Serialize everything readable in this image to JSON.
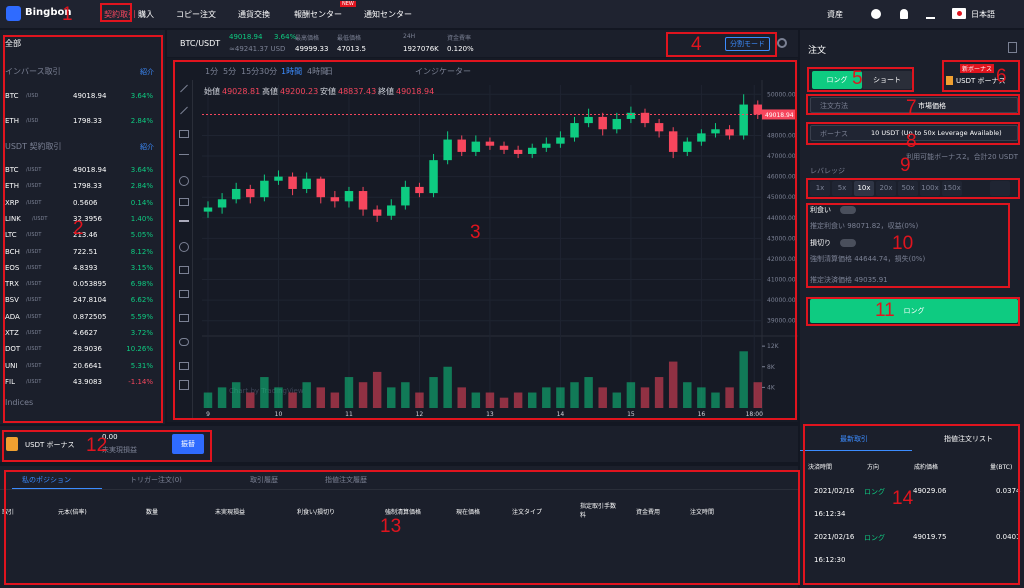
{
  "nav": {
    "logo": "Bingbon",
    "items": [
      "契約取引",
      "購入",
      "コピー注文",
      "通貨交換",
      "報酬センター",
      "通知センター"
    ],
    "badge": "NEW",
    "assets": "資産",
    "language": "日本語"
  },
  "annotations": [
    1,
    2,
    3,
    4,
    5,
    6,
    7,
    8,
    9,
    10,
    11,
    12,
    13,
    14
  ],
  "markets": {
    "filter": "全部",
    "inverse_title": "インバース取引",
    "inverse_intro": "紹介",
    "inverse_rows": [
      [
        "BTC",
        "/USD",
        "49018.94",
        "3.64%"
      ],
      [
        "ETH",
        "/USD",
        "1798.33",
        "2.84%"
      ]
    ],
    "usdt_title": "USDT 契約取引",
    "usdt_intro": "紹介",
    "usdt_rows": [
      [
        "BTC",
        "/USDT",
        "49018.94",
        "3.64%"
      ],
      [
        "ETH",
        "/USDT",
        "1798.33",
        "2.84%"
      ],
      [
        "XRP",
        "/USDT",
        "0.5606",
        "0.14%"
      ],
      [
        "LINK",
        "/USDT",
        "32.3956",
        "1.40%"
      ],
      [
        "LTC",
        "/USDT",
        "213.46",
        "5.05%"
      ],
      [
        "BCH",
        "/USDT",
        "722.51",
        "8.12%"
      ],
      [
        "EOS",
        "/USDT",
        "4.8393",
        "3.15%"
      ],
      [
        "TRX",
        "/USDT",
        "0.053895",
        "6.98%"
      ],
      [
        "BSV",
        "/USDT",
        "247.8104",
        "6.62%"
      ],
      [
        "ADA",
        "/USDT",
        "0.872505",
        "5.59%"
      ],
      [
        "XTZ",
        "/USDT",
        "4.6627",
        "3.72%"
      ],
      [
        "DOT",
        "/USDT",
        "28.9036",
        "10.26%"
      ],
      [
        "UNI",
        "/USDT",
        "20.6641",
        "5.31%"
      ],
      [
        "FIL",
        "/USDT",
        "43.9083",
        "-1.14%"
      ]
    ],
    "indices": "Indices"
  },
  "header": {
    "pair": "BTC/USDT",
    "price": "49018.94",
    "change": "3.64%",
    "usd": "≈49241.37 USD",
    "stats": [
      {
        "label": "最高価格",
        "value": "49999.33"
      },
      {
        "label": "最低価格",
        "value": "47013.5"
      },
      {
        "label": "24H",
        "value": "1927076K"
      },
      {
        "label": "資金費率",
        "value": "0.120%"
      }
    ],
    "mode": "分割モード"
  },
  "toolbar": {
    "intervals": [
      "1分",
      "5分",
      "15分",
      "30分",
      "1時間",
      "4時間",
      "日"
    ],
    "indicators": "インジケーター"
  },
  "chart_data": {
    "type": "candlestick",
    "ohlc_labels": [
      "始値",
      "高値",
      "安値",
      "終値"
    ],
    "ohlc_values": [
      49028.81,
      49200.23,
      48837.43,
      49018.94
    ],
    "x": [
      9.0,
      9.2,
      9.4,
      9.6,
      9.8,
      10.0,
      10.2,
      10.4,
      10.6,
      10.8,
      11.0,
      11.2,
      11.4,
      11.6,
      11.8,
      12.0,
      12.2,
      12.4,
      12.6,
      12.8,
      13.0,
      13.2,
      13.4,
      13.6,
      13.8,
      14.0,
      14.2,
      14.4,
      14.6,
      14.8,
      15.0,
      15.2,
      15.4,
      15.6,
      15.8,
      16.0,
      16.2,
      16.4,
      16.6,
      16.8
    ],
    "open": [
      44300,
      44500,
      44900,
      45400,
      45000,
      45800,
      46000,
      45400,
      45900,
      45000,
      44800,
      45300,
      44400,
      44100,
      44600,
      45500,
      45200,
      46800,
      47800,
      47200,
      47700,
      47500,
      47300,
      47100,
      47400,
      47600,
      47900,
      48600,
      48900,
      48300,
      48800,
      49100,
      48600,
      48200,
      47200,
      47700,
      48100,
      48300,
      48000,
      49500
    ],
    "high": [
      44800,
      45200,
      45700,
      45600,
      46100,
      46300,
      46200,
      46200,
      46000,
      45300,
      45500,
      45500,
      44600,
      44900,
      45800,
      45700,
      47100,
      48200,
      48000,
      48000,
      47900,
      47700,
      47500,
      47600,
      47900,
      48200,
      48900,
      49300,
      49100,
      49100,
      49400,
      49300,
      48800,
      48400,
      47900,
      48300,
      48600,
      48500,
      50000,
      49700
    ],
    "low": [
      44000,
      44200,
      44700,
      44700,
      44800,
      45600,
      45100,
      45200,
      44700,
      44500,
      44500,
      44100,
      43800,
      43900,
      44400,
      45000,
      45000,
      46600,
      47000,
      47000,
      47300,
      47100,
      46900,
      46900,
      47200,
      47400,
      47700,
      48400,
      48000,
      48100,
      48600,
      48400,
      47900,
      46900,
      47000,
      47500,
      47900,
      47800,
      47800,
      48800
    ],
    "close": [
      44500,
      44900,
      45400,
      45000,
      45800,
      46000,
      45400,
      45900,
      45000,
      44800,
      45300,
      44400,
      44100,
      44600,
      45500,
      45200,
      46800,
      47800,
      47200,
      47700,
      47500,
      47300,
      47100,
      47400,
      47600,
      47900,
      48600,
      48900,
      48300,
      48800,
      49100,
      48600,
      48200,
      47200,
      47700,
      48100,
      48300,
      48000,
      49500,
      49018.94
    ],
    "volume": [
      3,
      4,
      5,
      3,
      6,
      4,
      3,
      5,
      4,
      3,
      6,
      5,
      7,
      4,
      5,
      3,
      6,
      8,
      4,
      3,
      3,
      2,
      3,
      3,
      4,
      4,
      5,
      6,
      4,
      3,
      5,
      4,
      6,
      9,
      5,
      4,
      3,
      4,
      11,
      5
    ],
    "xlim": [
      8.915,
      16.86
    ],
    "xticks": [
      9,
      10,
      11,
      12,
      13,
      14,
      15,
      16,
      {
        "value": 16.75,
        "label": "18:00"
      }
    ],
    "ylim": [
      38550,
      50450
    ],
    "yticks": [
      {
        "value": 50000,
        "label": "50000.00"
      },
      {
        "value": 48000,
        "label": "48000.00"
      },
      {
        "value": 47000,
        "label": "47000.00"
      },
      {
        "value": 46000,
        "label": "46000.00"
      },
      {
        "value": 45000,
        "label": "45000.00"
      },
      {
        "value": 44000,
        "label": "44000.00"
      },
      {
        "value": 43000,
        "label": "43000.00"
      },
      {
        "value": 42000,
        "label": "42000.00"
      },
      {
        "value": 41000,
        "label": "41000.00"
      },
      {
        "value": 40000,
        "label": "40000.00"
      },
      {
        "value": 39000,
        "label": "39000.00"
      }
    ],
    "volume_ylim": [
      0,
      12.8
    ],
    "volume_yticks": [
      {
        "value": 12,
        "label": "12K"
      },
      {
        "value": 8,
        "label": "8K"
      },
      {
        "value": 4,
        "label": "4K"
      }
    ],
    "up_color": "#0ecb81",
    "down_color": "#f6465d",
    "grid": true,
    "watermark": "Chart by TradingView"
  },
  "order": {
    "title": "注文",
    "long": "ロング",
    "short": "ショート",
    "bonus_badge": "新ボーナス",
    "bonus_account": "USDT ボーナス",
    "method_label": "注文方法",
    "method": "市場価格",
    "bonus_label": "ボーナス",
    "bonus_value": "10 USDT (Up to 50x Leverage Available)",
    "bonus_note": "利用可能ボーナス2。合計20 USDT",
    "leverage_label": "レバレッジ",
    "leverage_options": [
      "1x",
      "5x",
      "10x",
      "20x",
      "50x",
      "100x",
      "150x"
    ],
    "take_profit": "利食い",
    "take_profit_note": "推定利食い 98071.82，収益(0%)",
    "stop_loss": "損切り",
    "stop_loss_note": "強制清算価格 44644.74，損失(0%)",
    "settle_note": "推定決済価格 49035.91",
    "submit": "ロング"
  },
  "balance": {
    "account": "USDT ボーナス",
    "amount": "0.00",
    "pnl_label": "未実現損益",
    "transfer": "振替"
  },
  "positions": {
    "tabs": [
      "私のポジション",
      "トリガー注文(0)",
      "取引履歴",
      "指値注文履歴"
    ],
    "columns": [
      "取引",
      "元本(倍率)",
      "数量",
      "未実現損益",
      "利食い/損切り",
      "強制清算価格",
      "現在価格",
      "注文タイプ",
      "指定取引手数料",
      "資金費用",
      "注文時間"
    ]
  },
  "trades": {
    "tabs": [
      "最新取引",
      "指値注文リスト"
    ],
    "columns": [
      "決済時間",
      "方向",
      "成約価格",
      "量(BTC)"
    ],
    "rows": [
      [
        "2021/02/16",
        "16:12:34",
        "ロング",
        "49029.06",
        "0.0374"
      ],
      [
        "2021/02/16",
        "16:12:30",
        "ロング",
        "49019.75",
        "0.0401"
      ]
    ]
  }
}
